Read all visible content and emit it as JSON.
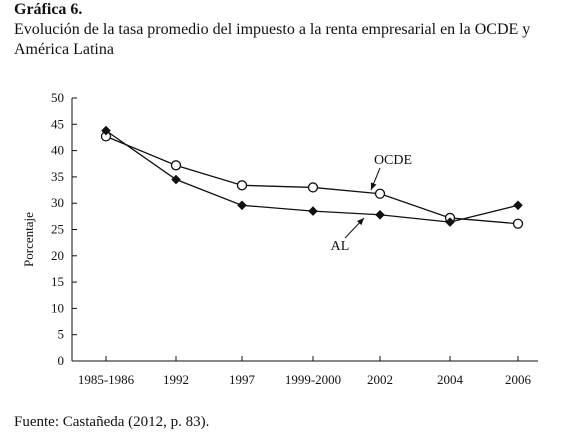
{
  "figure": {
    "heading": "Gráfica 6.",
    "subtitle": "Evolución de la tasa promedio del impuesto a la renta empresarial en la OCDE y América Latina",
    "source": "Fuente: Castañeda (2012, p. 83)."
  },
  "chart_data": {
    "type": "line",
    "title": "Evolución de la tasa promedio del impuesto a la renta empresarial en la OCDE y América Latina",
    "xlabel": "",
    "ylabel": "Porcentaje",
    "ylim": [
      0,
      50
    ],
    "yticks": [
      "0",
      "5",
      "10",
      "15",
      "20",
      "25",
      "30",
      "35",
      "40",
      "45",
      "50"
    ],
    "categories": [
      "1985-1986",
      "1992",
      "1997",
      "1999-2000",
      "2002",
      "2004",
      "2006"
    ],
    "grid": false,
    "legend": "annotated with arrows",
    "series": [
      {
        "name": "OCDE",
        "marker": "open-circle",
        "values": [
          42.7,
          37.2,
          33.4,
          33.0,
          31.8,
          27.2,
          26.1
        ]
      },
      {
        "name": "AL",
        "marker": "filled-diamond",
        "values": [
          43.8,
          34.5,
          29.6,
          28.5,
          27.8,
          26.4,
          29.6
        ]
      }
    ],
    "colors": {
      "line": "#111111",
      "axis": "#111111"
    }
  }
}
